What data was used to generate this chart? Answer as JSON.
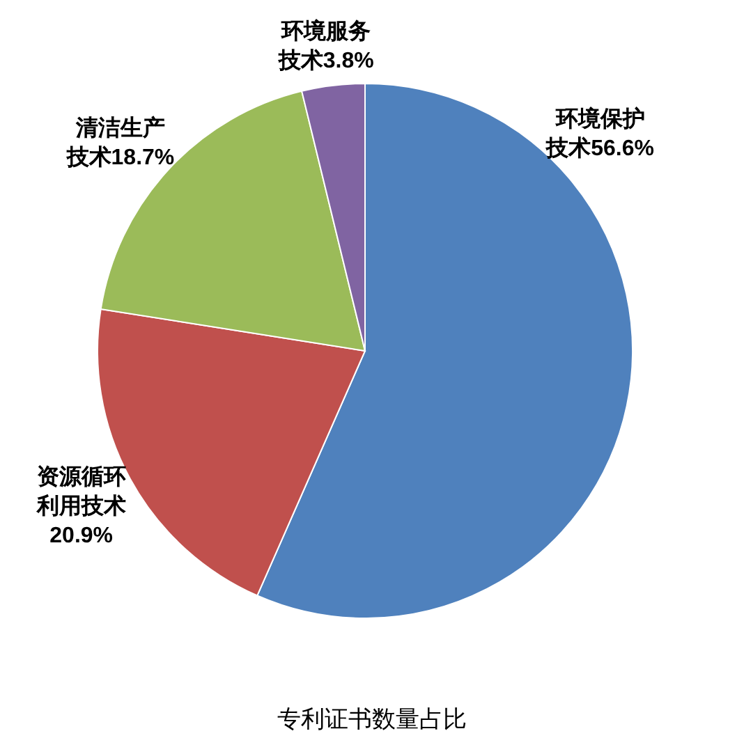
{
  "chart_data": {
    "type": "pie",
    "title": "专利证书数量占比",
    "categories": [
      "环境保护技术",
      "资源循环利用技术",
      "清洁生产技术",
      "环境服务技术"
    ],
    "values": [
      56.6,
      20.9,
      18.7,
      3.8
    ],
    "colors": [
      "#4f81bd",
      "#c0504d",
      "#9bbb59",
      "#8064a2"
    ],
    "value_labels": [
      "56.6%",
      "20.9%",
      "18.7%",
      "3.8%"
    ],
    "legend": false
  }
}
